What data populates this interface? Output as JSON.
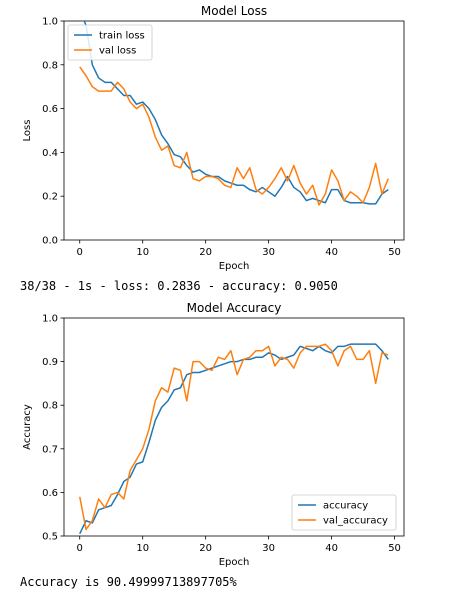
{
  "chart_data": [
    {
      "type": "line",
      "title": "Model Loss",
      "xlabel": "Epoch",
      "ylabel": "Loss",
      "xlim": [
        -2.5,
        51.5
      ],
      "ylim": [
        0.0,
        1.0
      ],
      "xticks": [
        0,
        10,
        20,
        30,
        40,
        50
      ],
      "yticks": [
        0.0,
        0.2,
        0.4,
        0.6,
        0.8,
        1.0
      ],
      "legend": "upper-left",
      "grid": false,
      "x": [
        0,
        1,
        2,
        3,
        4,
        5,
        6,
        7,
        8,
        9,
        10,
        11,
        12,
        13,
        14,
        15,
        16,
        17,
        18,
        19,
        20,
        21,
        22,
        23,
        24,
        25,
        26,
        27,
        28,
        29,
        30,
        31,
        32,
        33,
        34,
        35,
        36,
        37,
        38,
        39,
        40,
        41,
        42,
        43,
        44,
        45,
        46,
        47,
        48,
        49
      ],
      "series": [
        {
          "name": "train loss",
          "color": "#1f77b4",
          "values": [
            1.05,
            0.98,
            0.8,
            0.74,
            0.72,
            0.72,
            0.69,
            0.66,
            0.66,
            0.62,
            0.63,
            0.6,
            0.55,
            0.48,
            0.44,
            0.39,
            0.38,
            0.34,
            0.31,
            0.32,
            0.3,
            0.29,
            0.29,
            0.27,
            0.26,
            0.25,
            0.25,
            0.23,
            0.22,
            0.24,
            0.22,
            0.2,
            0.24,
            0.29,
            0.24,
            0.22,
            0.18,
            0.19,
            0.18,
            0.17,
            0.23,
            0.23,
            0.18,
            0.17,
            0.17,
            0.17,
            0.165,
            0.165,
            0.21,
            0.23
          ]
        },
        {
          "name": "val loss",
          "color": "#ff7f0e",
          "values": [
            0.79,
            0.75,
            0.7,
            0.68,
            0.68,
            0.68,
            0.72,
            0.69,
            0.63,
            0.6,
            0.62,
            0.56,
            0.47,
            0.41,
            0.43,
            0.34,
            0.33,
            0.4,
            0.28,
            0.27,
            0.29,
            0.29,
            0.28,
            0.25,
            0.24,
            0.33,
            0.28,
            0.33,
            0.23,
            0.21,
            0.24,
            0.28,
            0.33,
            0.27,
            0.34,
            0.26,
            0.21,
            0.25,
            0.16,
            0.21,
            0.32,
            0.27,
            0.18,
            0.22,
            0.2,
            0.17,
            0.24,
            0.35,
            0.21,
            0.28
          ]
        }
      ]
    },
    {
      "type": "line",
      "title": "Model Accuracy",
      "xlabel": "Epoch",
      "ylabel": "Accuracy",
      "xlim": [
        -2.5,
        51.5
      ],
      "ylim": [
        0.5,
        1.0
      ],
      "xticks": [
        0,
        10,
        20,
        30,
        40,
        50
      ],
      "yticks": [
        0.5,
        0.6,
        0.7,
        0.8,
        0.9,
        1.0
      ],
      "legend": "lower-right",
      "grid": false,
      "x": [
        0,
        1,
        2,
        3,
        4,
        5,
        6,
        7,
        8,
        9,
        10,
        11,
        12,
        13,
        14,
        15,
        16,
        17,
        18,
        19,
        20,
        21,
        22,
        23,
        24,
        25,
        26,
        27,
        28,
        29,
        30,
        31,
        32,
        33,
        34,
        35,
        36,
        37,
        38,
        39,
        40,
        41,
        42,
        43,
        44,
        45,
        46,
        47,
        48,
        49
      ],
      "series": [
        {
          "name": "accuracy",
          "color": "#1f77b4",
          "values": [
            0.505,
            0.535,
            0.53,
            0.56,
            0.565,
            0.57,
            0.595,
            0.625,
            0.635,
            0.665,
            0.67,
            0.715,
            0.765,
            0.795,
            0.81,
            0.835,
            0.84,
            0.87,
            0.875,
            0.875,
            0.88,
            0.885,
            0.89,
            0.895,
            0.9,
            0.9,
            0.905,
            0.905,
            0.91,
            0.91,
            0.92,
            0.915,
            0.905,
            0.91,
            0.915,
            0.935,
            0.93,
            0.925,
            0.935,
            0.925,
            0.92,
            0.935,
            0.935,
            0.94,
            0.94,
            0.94,
            0.94,
            0.94,
            0.925,
            0.905
          ]
        },
        {
          "name": "val_accuracy",
          "color": "#ff7f0e",
          "values": [
            0.59,
            0.515,
            0.535,
            0.585,
            0.565,
            0.595,
            0.6,
            0.585,
            0.65,
            0.675,
            0.7,
            0.745,
            0.81,
            0.84,
            0.83,
            0.885,
            0.88,
            0.81,
            0.9,
            0.9,
            0.885,
            0.88,
            0.91,
            0.905,
            0.925,
            0.87,
            0.905,
            0.91,
            0.925,
            0.925,
            0.935,
            0.89,
            0.91,
            0.905,
            0.885,
            0.92,
            0.935,
            0.935,
            0.935,
            0.94,
            0.925,
            0.89,
            0.925,
            0.935,
            0.905,
            0.905,
            0.925,
            0.85,
            0.92,
            0.915
          ]
        }
      ]
    }
  ],
  "console": {
    "eval_line": "38/38 - 1s - loss: 0.2836 - accuracy: 0.9050",
    "result_line": "Accuracy is 90.49999713897705%"
  }
}
